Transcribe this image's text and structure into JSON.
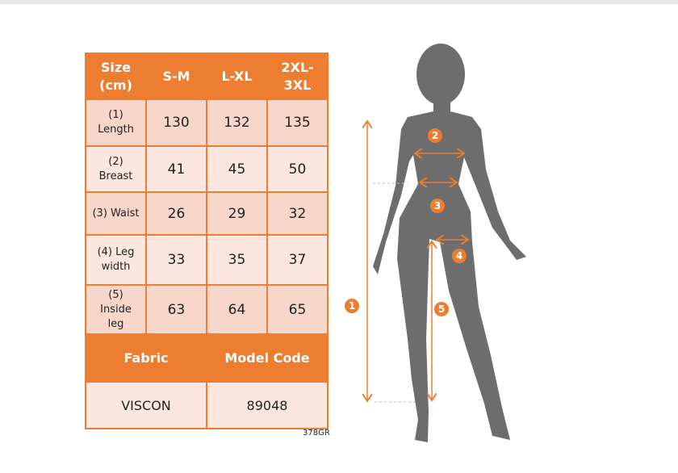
{
  "table": {
    "header": [
      "Size (cm)",
      "S-M",
      "L-XL",
      "2XL-3XL"
    ],
    "rows": [
      {
        "label": "(1) Length",
        "values": [
          "130",
          "132",
          "135"
        ]
      },
      {
        "label": "(2) Breast",
        "values": [
          "41",
          "45",
          "50"
        ]
      },
      {
        "label": "(3) Waist",
        "values": [
          "26",
          "29",
          "32"
        ]
      },
      {
        "label": "(4) Leg width",
        "values": [
          "33",
          "35",
          "37"
        ]
      },
      {
        "label": "(5) Inside leg",
        "values": [
          "63",
          "64",
          "65"
        ]
      }
    ],
    "fabric_label": "Fabric",
    "model_code_label": "Model Code",
    "fabric_value": "VISCON",
    "model_code_value": "89048"
  },
  "product_code": "378GR",
  "figure": {
    "markers": [
      "1",
      "2",
      "3",
      "4",
      "5"
    ]
  },
  "colors": {
    "accent": "#ed7d31",
    "silhouette": "#6d6d6d",
    "cell_dark": "#f8d6ca",
    "cell_light": "#fbe7df"
  }
}
